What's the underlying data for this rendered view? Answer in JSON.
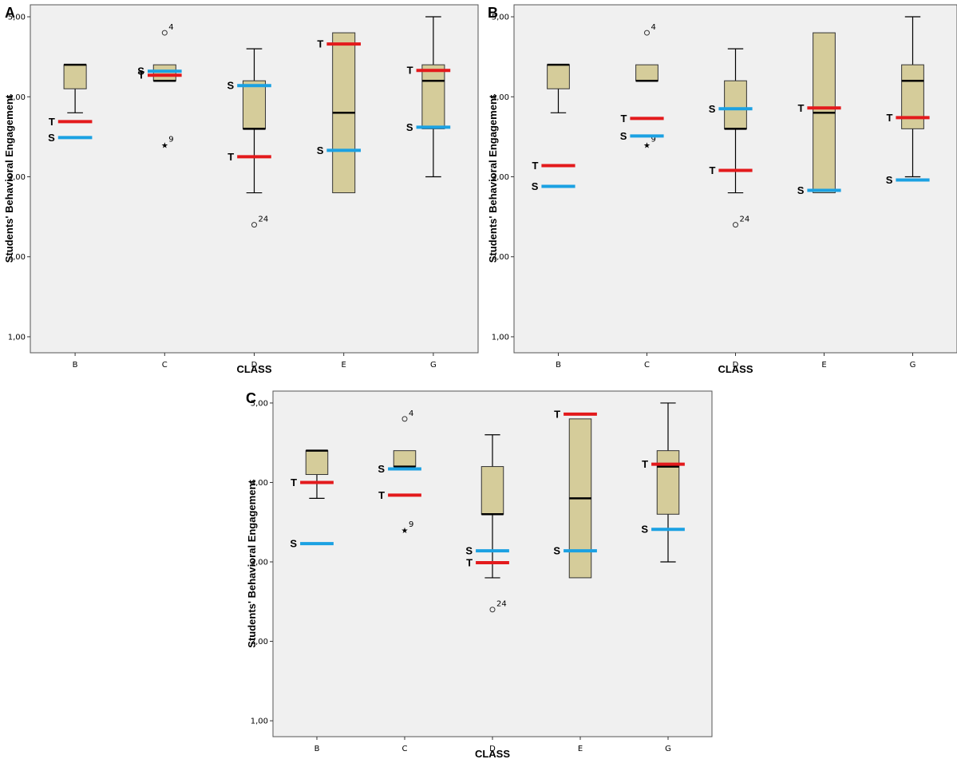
{
  "colors": {
    "plot_background": "#f0f0f0",
    "box_fill": "#d5cc9a",
    "teacher_line": "#e31a1c",
    "student_line": "#1ba1e2"
  },
  "chart_data": [
    {
      "panel": "A",
      "type": "box",
      "xlabel": "CLASS",
      "ylabel": "Students' Behavioral Engagement",
      "ylim": [
        0.8,
        5.15
      ],
      "yticks": [
        "1,00",
        "2,00",
        "3,00",
        "4,00",
        "5,00"
      ],
      "ytick_values": [
        1,
        2,
        3,
        4,
        5
      ],
      "categories": [
        "B",
        "C",
        "D",
        "E",
        "G"
      ],
      "boxes": [
        {
          "category": "B",
          "q1": 4.1,
          "median": 4.4,
          "q3": 4.4,
          "whisker_low": 3.8,
          "whisker_high": 4.4
        },
        {
          "category": "C",
          "q1": 4.2,
          "median": 4.2,
          "q3": 4.4,
          "whisker_low": 4.2,
          "whisker_high": 4.4
        },
        {
          "category": "D",
          "q1": 3.6,
          "median": 3.6,
          "q3": 4.2,
          "whisker_low": 2.8,
          "whisker_high": 4.6
        },
        {
          "category": "E",
          "q1": 2.8,
          "median": 3.8,
          "q3": 4.8,
          "whisker_low": 2.8,
          "whisker_high": 4.8
        },
        {
          "category": "G",
          "q1": 3.6,
          "median": 4.2,
          "q3": 4.4,
          "whisker_low": 3.0,
          "whisker_high": 5.0
        }
      ],
      "outliers": [
        {
          "category": "C",
          "value": 4.8,
          "marker": "circle",
          "label": "4"
        },
        {
          "category": "C",
          "value": 3.4,
          "marker": "star",
          "label": "9"
        },
        {
          "category": "D",
          "value": 2.4,
          "marker": "circle",
          "label": "24"
        }
      ],
      "teacher_marks": [
        {
          "category": "B",
          "value": 3.69,
          "label": "T"
        },
        {
          "category": "C",
          "value": 4.27,
          "label": "T"
        },
        {
          "category": "D",
          "value": 3.25,
          "label": "T"
        },
        {
          "category": "E",
          "value": 4.66,
          "label": "T"
        },
        {
          "category": "G",
          "value": 4.33,
          "label": "T"
        }
      ],
      "student_marks": [
        {
          "category": "B",
          "value": 3.49,
          "label": "S"
        },
        {
          "category": "C",
          "value": 4.32,
          "label": "S"
        },
        {
          "category": "D",
          "value": 4.14,
          "label": "S"
        },
        {
          "category": "E",
          "value": 3.33,
          "label": "S"
        },
        {
          "category": "G",
          "value": 3.62,
          "label": "S"
        }
      ]
    },
    {
      "panel": "B",
      "type": "box",
      "xlabel": "CLASS",
      "ylabel": "Students' Behavioral Engagement",
      "ylim": [
        0.8,
        5.15
      ],
      "yticks": [
        "1,00",
        "2,00",
        "3,00",
        "4,00",
        "5,00"
      ],
      "ytick_values": [
        1,
        2,
        3,
        4,
        5
      ],
      "categories": [
        "B",
        "C",
        "D",
        "E",
        "G"
      ],
      "boxes": [
        {
          "category": "B",
          "q1": 4.1,
          "median": 4.4,
          "q3": 4.4,
          "whisker_low": 3.8,
          "whisker_high": 4.4
        },
        {
          "category": "C",
          "q1": 4.2,
          "median": 4.2,
          "q3": 4.4,
          "whisker_low": 4.2,
          "whisker_high": 4.4
        },
        {
          "category": "D",
          "q1": 3.6,
          "median": 3.6,
          "q3": 4.2,
          "whisker_low": 2.8,
          "whisker_high": 4.6
        },
        {
          "category": "E",
          "q1": 2.8,
          "median": 3.8,
          "q3": 4.8,
          "whisker_low": 2.8,
          "whisker_high": 4.8
        },
        {
          "category": "G",
          "q1": 3.6,
          "median": 4.2,
          "q3": 4.4,
          "whisker_low": 3.0,
          "whisker_high": 5.0
        }
      ],
      "outliers": [
        {
          "category": "C",
          "value": 4.8,
          "marker": "circle",
          "label": "4"
        },
        {
          "category": "C",
          "value": 3.4,
          "marker": "star",
          "label": "9"
        },
        {
          "category": "D",
          "value": 2.4,
          "marker": "circle",
          "label": "24"
        }
      ],
      "teacher_marks": [
        {
          "category": "B",
          "value": 3.14,
          "label": "T"
        },
        {
          "category": "C",
          "value": 3.73,
          "label": "T"
        },
        {
          "category": "D",
          "value": 3.08,
          "label": "T"
        },
        {
          "category": "E",
          "value": 3.86,
          "label": "T"
        },
        {
          "category": "G",
          "value": 3.74,
          "label": "T"
        }
      ],
      "student_marks": [
        {
          "category": "B",
          "value": 2.88,
          "label": "S"
        },
        {
          "category": "C",
          "value": 3.51,
          "label": "S"
        },
        {
          "category": "D",
          "value": 3.85,
          "label": "S"
        },
        {
          "category": "E",
          "value": 2.83,
          "label": "S"
        },
        {
          "category": "G",
          "value": 2.96,
          "label": "S"
        }
      ]
    },
    {
      "panel": "C",
      "type": "box",
      "xlabel": "CLASS",
      "ylabel": "Students' Behavioral Engagement",
      "ylim": [
        0.8,
        5.15
      ],
      "yticks": [
        "1,00",
        "2,00",
        "3,00",
        "4,00",
        "5,00"
      ],
      "ytick_values": [
        1,
        2,
        3,
        4,
        5
      ],
      "categories": [
        "B",
        "C",
        "D",
        "E",
        "G"
      ],
      "boxes": [
        {
          "category": "B",
          "q1": 4.1,
          "median": 4.4,
          "q3": 4.4,
          "whisker_low": 3.8,
          "whisker_high": 4.4
        },
        {
          "category": "C",
          "q1": 4.2,
          "median": 4.2,
          "q3": 4.4,
          "whisker_low": 4.2,
          "whisker_high": 4.4
        },
        {
          "category": "D",
          "q1": 3.6,
          "median": 3.6,
          "q3": 4.2,
          "whisker_low": 2.8,
          "whisker_high": 4.6
        },
        {
          "category": "E",
          "q1": 2.8,
          "median": 3.8,
          "q3": 4.8,
          "whisker_low": 2.8,
          "whisker_high": 4.8
        },
        {
          "category": "G",
          "q1": 3.6,
          "median": 4.2,
          "q3": 4.4,
          "whisker_low": 3.0,
          "whisker_high": 5.0
        }
      ],
      "outliers": [
        {
          "category": "C",
          "value": 4.8,
          "marker": "circle",
          "label": "4"
        },
        {
          "category": "C",
          "value": 3.4,
          "marker": "star",
          "label": "9"
        },
        {
          "category": "D",
          "value": 2.4,
          "marker": "circle",
          "label": "24"
        }
      ],
      "teacher_marks": [
        {
          "category": "B",
          "value": 4.0,
          "label": "T"
        },
        {
          "category": "C",
          "value": 3.84,
          "label": "T"
        },
        {
          "category": "D",
          "value": 2.99,
          "label": "T"
        },
        {
          "category": "E",
          "value": 4.86,
          "label": "T"
        },
        {
          "category": "G",
          "value": 4.23,
          "label": "T"
        }
      ],
      "student_marks": [
        {
          "category": "B",
          "value": 3.23,
          "label": "S"
        },
        {
          "category": "C",
          "value": 4.17,
          "label": "S"
        },
        {
          "category": "D",
          "value": 3.14,
          "label": "S"
        },
        {
          "category": "E",
          "value": 3.14,
          "label": "S"
        },
        {
          "category": "G",
          "value": 3.41,
          "label": "S"
        }
      ]
    }
  ]
}
